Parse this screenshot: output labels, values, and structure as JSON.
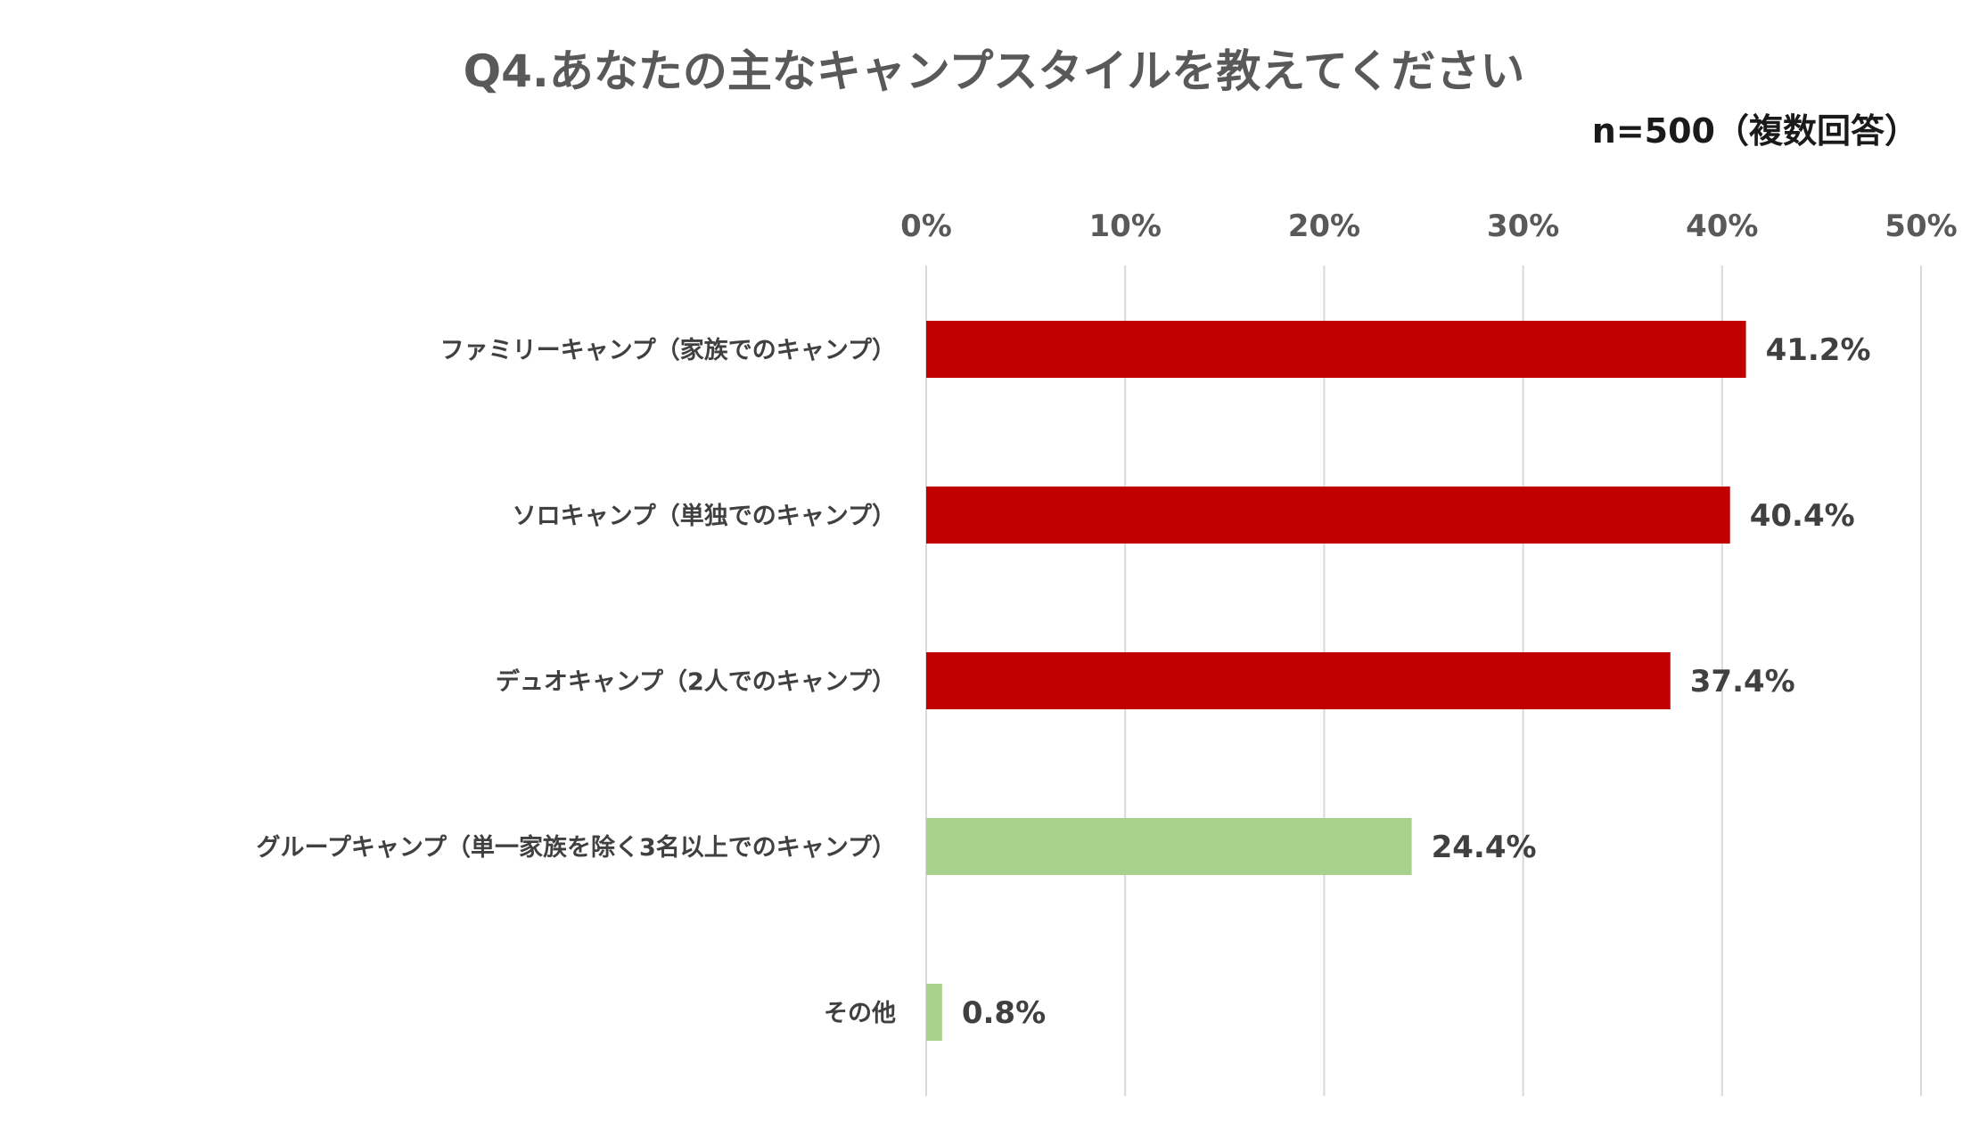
{
  "chart_data": {
    "type": "bar",
    "orientation": "horizontal",
    "title": "Q4.あなたの主なキャンプスタイルを教えてください",
    "subtitle": "n=500（複数回答）",
    "xlim": [
      0,
      50
    ],
    "x_ticks": [
      {
        "value": 0,
        "label": "0%"
      },
      {
        "value": 10,
        "label": "10%"
      },
      {
        "value": 20,
        "label": "20%"
      },
      {
        "value": 30,
        "label": "30%"
      },
      {
        "value": 40,
        "label": "40%"
      },
      {
        "value": 50,
        "label": "50%"
      }
    ],
    "categories": [
      "ファミリーキャンプ（家族でのキャンプ）",
      "ソロキャンプ（単独でのキャンプ）",
      "デュオキャンプ（2人でのキャンプ）",
      "グループキャンプ（単一家族を除く3名以上でのキャンプ）",
      "その他"
    ],
    "values": [
      41.2,
      40.4,
      37.4,
      24.4,
      0.8
    ],
    "data_labels": [
      "41.2%",
      "40.4%",
      "37.4%",
      "24.4%",
      "0.8%"
    ],
    "bar_colors": [
      "#c00000",
      "#c00000",
      "#c00000",
      "#a9d18e",
      "#a9d18e"
    ],
    "grid": true,
    "legend": "none"
  }
}
